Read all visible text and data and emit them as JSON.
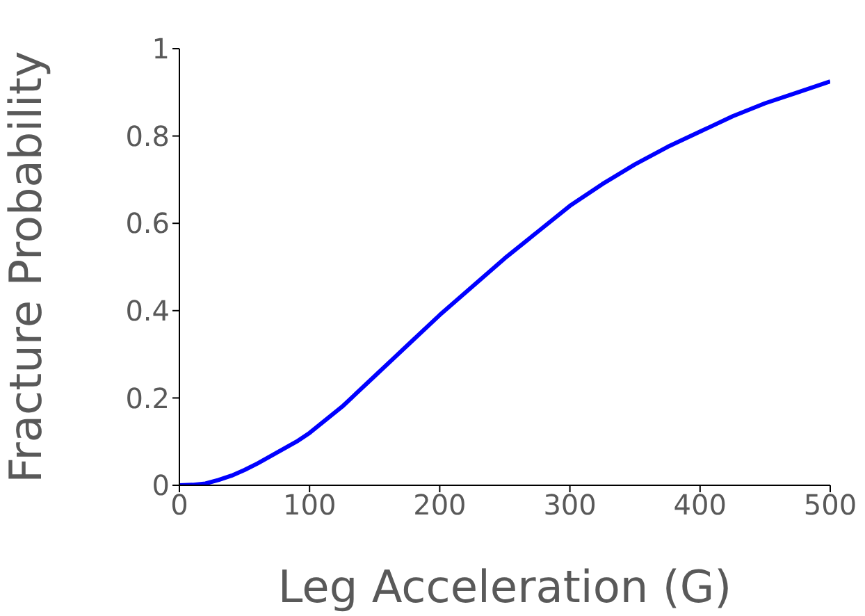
{
  "chart_data": {
    "type": "line",
    "xlabel": "Leg Acceleration (G)",
    "ylabel": "Fracture Probability",
    "x": [
      0,
      10,
      20,
      30,
      40,
      50,
      60,
      75,
      90,
      100,
      125,
      150,
      175,
      200,
      225,
      250,
      275,
      300,
      325,
      350,
      375,
      400,
      425,
      450,
      475,
      500
    ],
    "series": [
      {
        "color": "#0000ff",
        "values": [
          0,
          0.001,
          0.004,
          0.012,
          0.022,
          0.035,
          0.05,
          0.075,
          0.1,
          0.12,
          0.18,
          0.25,
          0.32,
          0.39,
          0.455,
          0.52,
          0.58,
          0.64,
          0.69,
          0.735,
          0.775,
          0.81,
          0.845,
          0.875,
          0.9,
          0.925
        ]
      }
    ],
    "xlim": [
      0,
      500
    ],
    "xticks": [
      0,
      100,
      200,
      300,
      400,
      500
    ],
    "ylim": [
      0,
      1
    ],
    "yticks": [
      0,
      0.2,
      0.4,
      0.6,
      0.8,
      1
    ],
    "grid": false,
    "legend": false,
    "marker": "none",
    "line_style": "solid"
  }
}
